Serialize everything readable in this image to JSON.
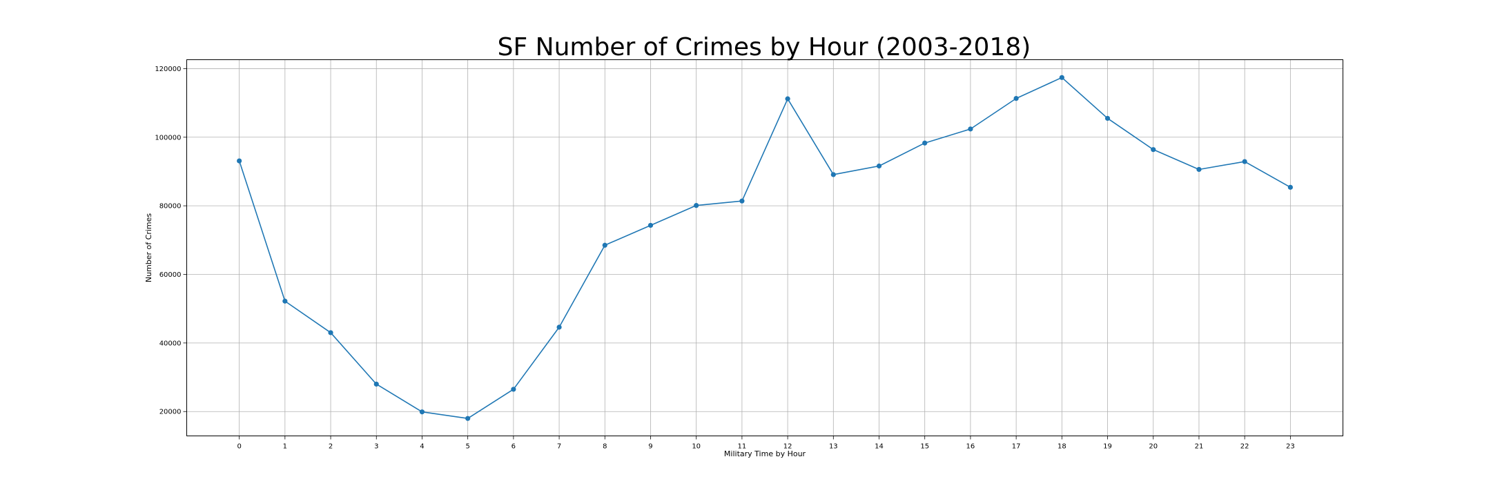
{
  "chart_data": {
    "type": "line",
    "title": "SF Number of Crimes by Hour (2003-2018)",
    "xlabel": "Military Time by Hour",
    "ylabel": "Number of Crimes",
    "x": [
      0,
      1,
      2,
      3,
      4,
      5,
      6,
      7,
      8,
      9,
      10,
      11,
      12,
      13,
      14,
      15,
      16,
      17,
      18,
      19,
      20,
      21,
      22,
      23
    ],
    "series": [
      {
        "values": [
          93100,
          52200,
          43000,
          28000,
          19900,
          18000,
          26500,
          44600,
          68500,
          74300,
          80100,
          81400,
          111200,
          89100,
          91600,
          98300,
          102400,
          111300,
          117400,
          105500,
          96400,
          90600,
          92900,
          85400
        ],
        "color": "#1f77b4",
        "marker": "circle"
      }
    ],
    "xlim": [
      -1.15,
      24.15
    ],
    "ylim": [
      12900,
      122600
    ],
    "xticks": [
      "0",
      "1",
      "2",
      "3",
      "4",
      "5",
      "6",
      "7",
      "8",
      "9",
      "10",
      "11",
      "12",
      "13",
      "14",
      "15",
      "16",
      "17",
      "18",
      "19",
      "20",
      "21",
      "22",
      "23"
    ],
    "yticks": [
      20000,
      40000,
      60000,
      80000,
      100000,
      120000
    ],
    "ytick_labels": [
      "20000",
      "40000",
      "60000",
      "80000",
      "100000",
      "120000"
    ],
    "grid": true,
    "legend": "none"
  }
}
